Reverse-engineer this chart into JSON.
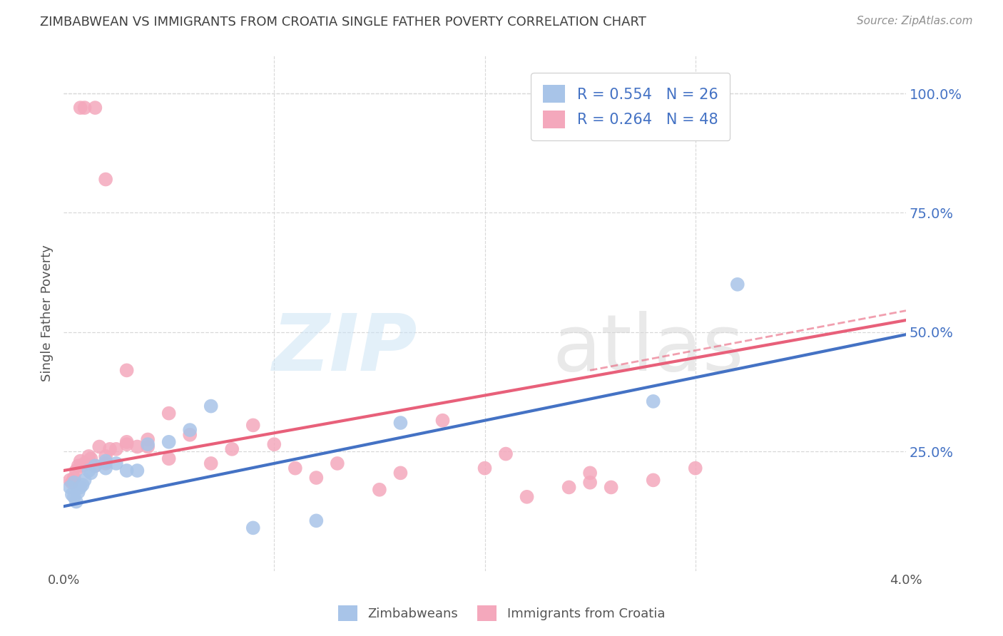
{
  "title": "ZIMBABWEAN VS IMMIGRANTS FROM CROATIA SINGLE FATHER POVERTY CORRELATION CHART",
  "source": "Source: ZipAtlas.com",
  "ylabel": "Single Father Poverty",
  "right_yticks": [
    "100.0%",
    "75.0%",
    "50.0%",
    "25.0%"
  ],
  "right_ytick_vals": [
    1.0,
    0.75,
    0.5,
    0.25
  ],
  "legend_blue_r": "R = 0.554",
  "legend_blue_n": "N = 26",
  "legend_pink_r": "R = 0.264",
  "legend_pink_n": "N = 48",
  "blue_color": "#a8c4e8",
  "pink_color": "#f4a8bc",
  "blue_line_color": "#4472c4",
  "pink_line_color": "#e8607a",
  "title_color": "#404040",
  "source_color": "#909090",
  "xlim": [
    0.0,
    0.04
  ],
  "ylim": [
    0.0,
    1.08
  ],
  "grid_color": "#d8d8d8",
  "background_color": "#ffffff",
  "blue_scatter_x": [
    0.0003,
    0.0004,
    0.0005,
    0.0005,
    0.0006,
    0.0007,
    0.0008,
    0.0009,
    0.001,
    0.0012,
    0.0013,
    0.0015,
    0.002,
    0.002,
    0.0025,
    0.003,
    0.0035,
    0.004,
    0.005,
    0.006,
    0.007,
    0.009,
    0.012,
    0.016,
    0.028,
    0.032
  ],
  "blue_scatter_y": [
    0.175,
    0.16,
    0.155,
    0.185,
    0.145,
    0.165,
    0.175,
    0.18,
    0.19,
    0.21,
    0.205,
    0.22,
    0.215,
    0.23,
    0.225,
    0.21,
    0.21,
    0.265,
    0.27,
    0.295,
    0.345,
    0.09,
    0.105,
    0.31,
    0.355,
    0.6
  ],
  "pink_scatter_x": [
    0.0003,
    0.0004,
    0.0005,
    0.0006,
    0.0007,
    0.0008,
    0.0009,
    0.001,
    0.0012,
    0.0013,
    0.0015,
    0.0017,
    0.002,
    0.002,
    0.0022,
    0.0025,
    0.003,
    0.003,
    0.0035,
    0.004,
    0.004,
    0.005,
    0.005,
    0.006,
    0.007,
    0.008,
    0.009,
    0.01,
    0.011,
    0.012,
    0.013,
    0.015,
    0.016,
    0.018,
    0.02,
    0.021,
    0.022,
    0.024,
    0.025,
    0.025,
    0.026,
    0.028,
    0.03,
    0.0008,
    0.001,
    0.0015,
    0.002,
    0.003
  ],
  "pink_scatter_y": [
    0.19,
    0.185,
    0.195,
    0.21,
    0.22,
    0.23,
    0.22,
    0.225,
    0.24,
    0.235,
    0.22,
    0.26,
    0.24,
    0.225,
    0.255,
    0.255,
    0.265,
    0.27,
    0.26,
    0.275,
    0.26,
    0.235,
    0.33,
    0.285,
    0.225,
    0.255,
    0.305,
    0.265,
    0.215,
    0.195,
    0.225,
    0.17,
    0.205,
    0.315,
    0.215,
    0.245,
    0.155,
    0.175,
    0.205,
    0.185,
    0.175,
    0.19,
    0.215,
    0.97,
    0.97,
    0.97,
    0.82,
    0.42
  ],
  "blue_line_x": [
    0.0,
    0.04
  ],
  "blue_line_y": [
    0.135,
    0.495
  ],
  "pink_line_x": [
    0.0,
    0.04
  ],
  "pink_line_y": [
    0.21,
    0.525
  ],
  "pink_dash_line_x": [
    0.025,
    0.04
  ],
  "pink_dash_line_y": [
    0.42,
    0.545
  ]
}
